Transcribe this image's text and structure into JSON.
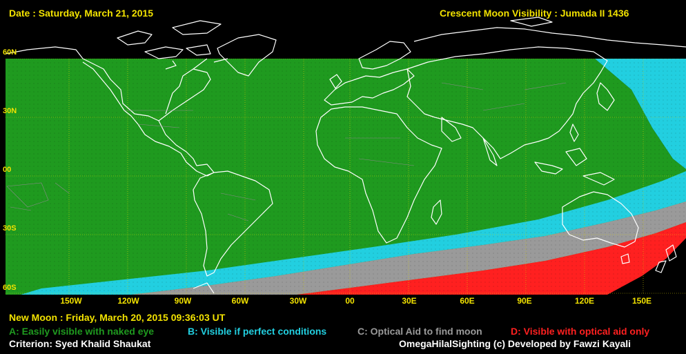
{
  "header": {
    "date": "Date : Saturday, March 21, 2015",
    "title": "Crescent Moon Visibility : Jumada II  1436"
  },
  "latitude_labels": [
    "60N",
    "30N",
    "00",
    "30S",
    "60S"
  ],
  "longitude_labels": [
    "150W",
    "120W",
    "90W",
    "60W",
    "30W",
    "00",
    "30E",
    "60E",
    "90E",
    "120E",
    "150E"
  ],
  "footer": {
    "new_moon": "New Moon : Friday, March 20, 2015  09:36:03  UT",
    "criterion": "Criterion: Syed Khalid Shaukat",
    "credit": "OmegaHilalSighting  (c)  Developed by Fawzi Kayali"
  },
  "legend": [
    {
      "label": "A: Easily visible with naked eye",
      "color": "#1f9a1f"
    },
    {
      "label": "B: Visible if perfect conditions",
      "color": "#22cfe0"
    },
    {
      "label": "C: Optical Aid to find moon",
      "color": "#9a9a9a"
    },
    {
      "label": "D: Visible with optical aid only",
      "color": "#ff2020"
    }
  ],
  "colors": {
    "background": "#000000",
    "zone_a": "#1f9a1f",
    "zone_b": "#22cfe0",
    "zone_c": "#9a9a9a",
    "zone_d": "#ff2020",
    "label_text": "#f2e200",
    "coastline": "#ffffff"
  }
}
